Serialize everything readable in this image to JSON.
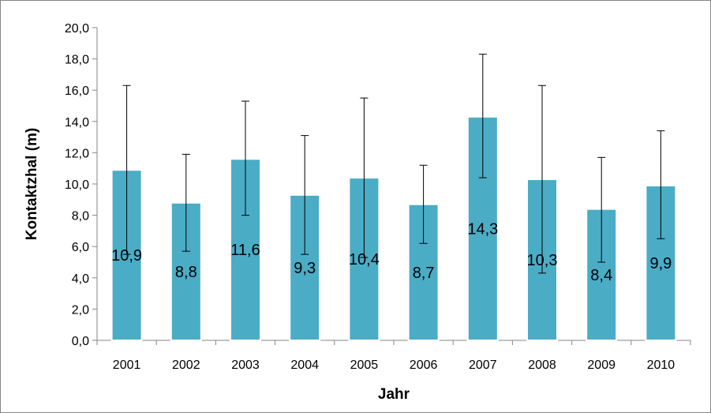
{
  "chart_data": {
    "type": "bar",
    "xlabel": "Jahr",
    "ylabel": "Kontaktzhal (m)",
    "ylim": [
      0,
      20
    ],
    "ytick_step": 2,
    "y_tick_labels": [
      "0,0",
      "2,0",
      "4,0",
      "6,0",
      "8,0",
      "10,0",
      "12,0",
      "14,0",
      "16,0",
      "18,0",
      "20,0"
    ],
    "grid": false,
    "legend": "none",
    "bar_color": "#4BACC6",
    "categories": [
      "2001",
      "2002",
      "2003",
      "2004",
      "2005",
      "2006",
      "2007",
      "2008",
      "2009",
      "2010"
    ],
    "values": [
      10.9,
      8.8,
      11.6,
      9.3,
      10.4,
      8.7,
      14.3,
      10.3,
      8.4,
      9.9
    ],
    "data_labels": [
      "10,9",
      "8,8",
      "11,6",
      "9,3",
      "10,4",
      "8,7",
      "14,3",
      "10,3",
      "8,4",
      "9,9"
    ],
    "error_bars": {
      "upper": [
        16.3,
        11.9,
        15.3,
        13.1,
        15.5,
        11.2,
        18.3,
        16.3,
        11.7,
        13.4
      ],
      "lower": [
        5.5,
        5.7,
        8.0,
        5.5,
        5.3,
        6.2,
        10.4,
        4.3,
        5.0,
        6.5
      ]
    }
  }
}
